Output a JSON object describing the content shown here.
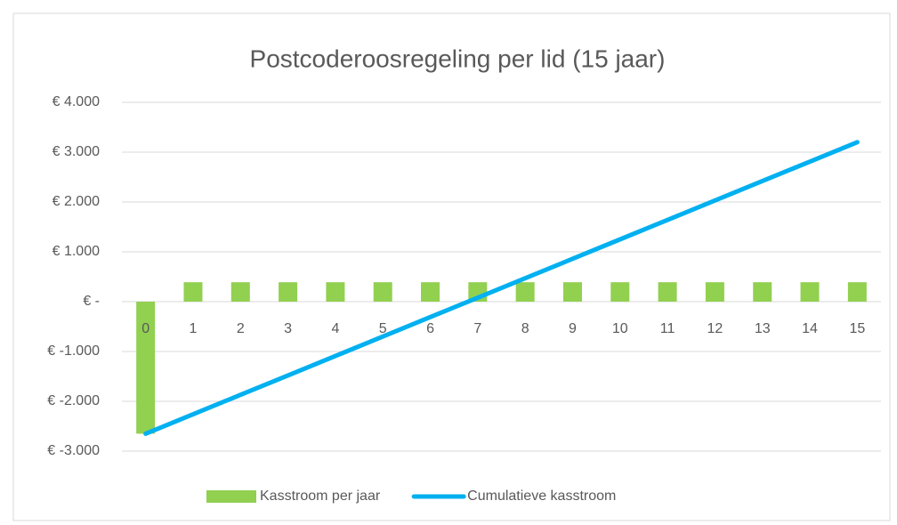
{
  "chart_data": {
    "type": "bar_line",
    "title": "Postcoderoosregeling per lid (15 jaar)",
    "categories": [
      "0",
      "1",
      "2",
      "3",
      "4",
      "5",
      "6",
      "7",
      "8",
      "9",
      "10",
      "11",
      "12",
      "13",
      "14",
      "15"
    ],
    "series": [
      {
        "name": "Kasstroom per jaar",
        "type": "bar",
        "color": "#92d050",
        "values": [
          -2650,
          390,
          390,
          390,
          390,
          390,
          390,
          390,
          390,
          390,
          390,
          390,
          390,
          390,
          390,
          390
        ]
      },
      {
        "name": "Cumulatieve kasstroom",
        "type": "line",
        "color": "#00b0f0",
        "values": [
          -2650,
          -2260,
          -1870,
          -1480,
          -1090,
          -700,
          -310,
          80,
          470,
          860,
          1250,
          1640,
          2030,
          2420,
          2810,
          3200
        ]
      }
    ],
    "ylim": [
      -3000,
      4000
    ],
    "yticks": [
      {
        "value": 4000,
        "label": "€ 4.000"
      },
      {
        "value": 3000,
        "label": "€ 3.000"
      },
      {
        "value": 2000,
        "label": "€ 2.000"
      },
      {
        "value": 1000,
        "label": "€ 1.000"
      },
      {
        "value": 0,
        "label": "€ -"
      },
      {
        "value": -1000,
        "label": "€ -1.000"
      },
      {
        "value": -2000,
        "label": "€ -2.000"
      },
      {
        "value": -3000,
        "label": "€ -3.000"
      }
    ],
    "grid": true,
    "legend": "bottom"
  }
}
